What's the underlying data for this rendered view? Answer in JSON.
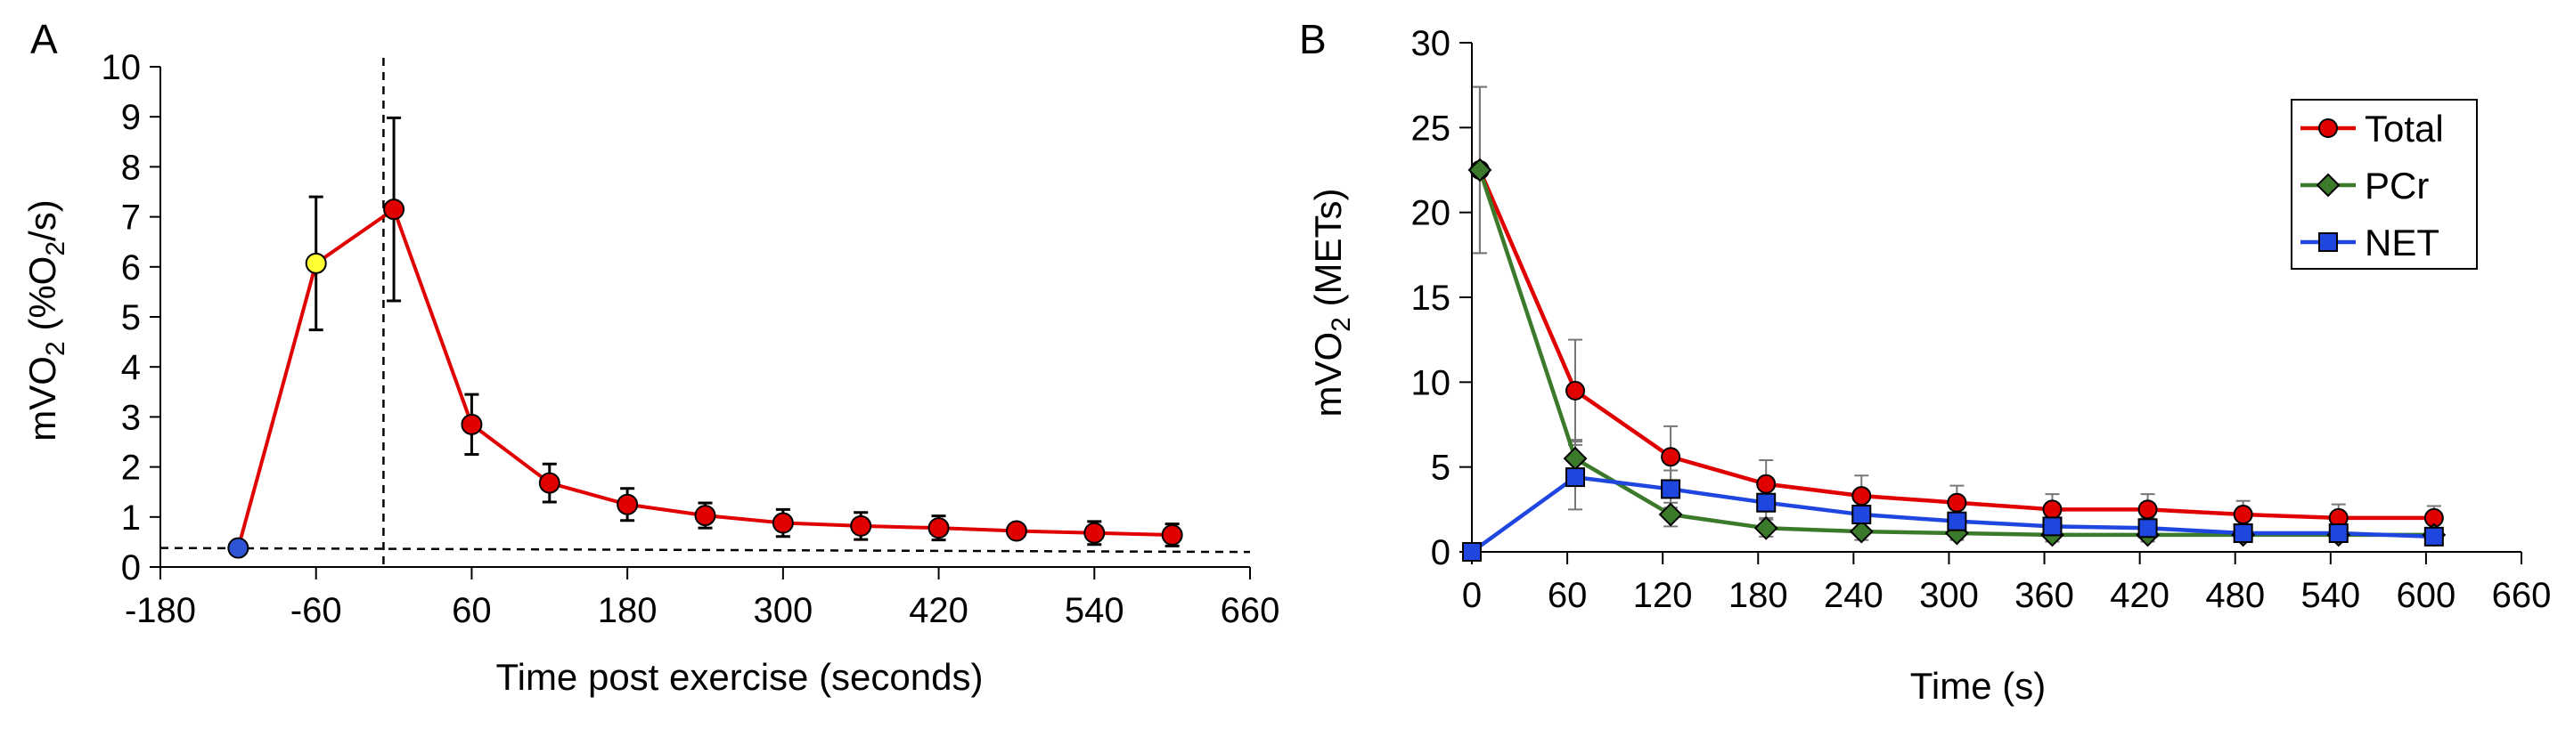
{
  "chart_data": [
    {
      "panel": "A",
      "type": "line",
      "title": "",
      "xlabel": "Time post exercise (seconds)",
      "ylabel_main": "mVO",
      "ylabel_sub": "2",
      "ylabel_rest": " (%O",
      "ylabel_sub2": "2",
      "ylabel_end": "/s)",
      "xlim": [
        -180,
        660
      ],
      "ylim": [
        0,
        10
      ],
      "xticks": [
        -180,
        -60,
        60,
        180,
        300,
        420,
        540,
        660
      ],
      "xtick_labels": [
        "-180",
        "-60",
        "60",
        "180",
        "300",
        "420",
        "540",
        "660"
      ],
      "yticks": [
        0,
        1,
        2,
        3,
        4,
        5,
        6,
        7,
        8,
        9,
        10
      ],
      "ytick_labels": [
        "0",
        "1",
        "2",
        "3",
        "4",
        "5",
        "6",
        "7",
        "8",
        "9",
        "10"
      ],
      "series": [
        {
          "name": "mVO2",
          "color": "#e00000",
          "x": [
            -120,
            -60,
            0,
            60,
            120,
            180,
            240,
            300,
            360,
            420,
            480,
            540,
            600
          ],
          "y": [
            0.38,
            6.07,
            7.15,
            2.85,
            1.68,
            1.25,
            1.03,
            0.88,
            0.82,
            0.78,
            0.72,
            0.68,
            0.64
          ],
          "err": [
            0.0,
            1.33,
            1.83,
            0.6,
            0.38,
            0.32,
            0.25,
            0.27,
            0.27,
            0.24,
            0.1,
            0.23,
            0.22
          ],
          "marker_colors": [
            "#2f55d4",
            "#ffff33",
            "#e00000",
            "#e00000",
            "#e00000",
            "#e00000",
            "#e00000",
            "#e00000",
            "#e00000",
            "#e00000",
            "#e00000",
            "#e00000",
            "#e00000"
          ]
        }
      ],
      "reference_lines": {
        "vertical_x": -8,
        "horizontal_y": [
          0.38,
          0.3
        ]
      }
    },
    {
      "panel": "B",
      "type": "line",
      "title": "",
      "xlabel": "Time (s)",
      "ylabel_main": "mVO",
      "ylabel_sub": "2",
      "ylabel_rest": " (METs)",
      "xlim": [
        0,
        660
      ],
      "ylim": [
        0,
        30
      ],
      "xticks": [
        0,
        60,
        120,
        180,
        240,
        300,
        360,
        420,
        480,
        540,
        600,
        660
      ],
      "xtick_labels": [
        "0",
        "60",
        "120",
        "180",
        "240",
        "300",
        "360",
        "420",
        "480",
        "540",
        "600",
        "660"
      ],
      "yticks": [
        0,
        5,
        10,
        15,
        20,
        25,
        30
      ],
      "ytick_labels": [
        "0",
        "5",
        "10",
        "15",
        "20",
        "25",
        "30"
      ],
      "legend_position": "top-right",
      "series": [
        {
          "name": "Total",
          "color": "#e00000",
          "marker": "circle",
          "x": [
            5,
            65,
            125,
            185,
            245,
            305,
            365,
            425,
            485,
            545,
            605
          ],
          "y": [
            22.5,
            9.5,
            5.6,
            4.0,
            3.3,
            2.9,
            2.5,
            2.5,
            2.2,
            2.0,
            2.0
          ],
          "err": [
            4.9,
            3.0,
            1.8,
            1.4,
            1.2,
            1.0,
            0.9,
            0.9,
            0.8,
            0.8,
            0.7
          ]
        },
        {
          "name": "PCr",
          "color": "#3c7a2b",
          "marker": "diamond",
          "x": [
            5,
            65,
            125,
            185,
            245,
            305,
            365,
            425,
            485,
            545,
            605
          ],
          "y": [
            22.5,
            5.5,
            2.2,
            1.4,
            1.2,
            1.1,
            1.0,
            1.0,
            1.0,
            1.0,
            1.0
          ],
          "err": [
            4.9,
            1.1,
            0.7,
            0.5,
            0.5,
            0.4,
            0.4,
            0.4,
            0.4,
            0.4,
            0.4
          ]
        },
        {
          "name": "NET",
          "color": "#1f47e0",
          "marker": "square",
          "x": [
            0,
            65,
            125,
            185,
            245,
            305,
            365,
            425,
            485,
            545,
            605
          ],
          "y": [
            0.0,
            4.4,
            3.7,
            2.9,
            2.2,
            1.8,
            1.5,
            1.4,
            1.1,
            1.1,
            0.9
          ],
          "err": [
            0.0,
            1.9,
            1.1,
            0.9,
            0.8,
            0.7,
            0.6,
            0.6,
            0.5,
            0.5,
            0.4
          ]
        }
      ]
    }
  ]
}
